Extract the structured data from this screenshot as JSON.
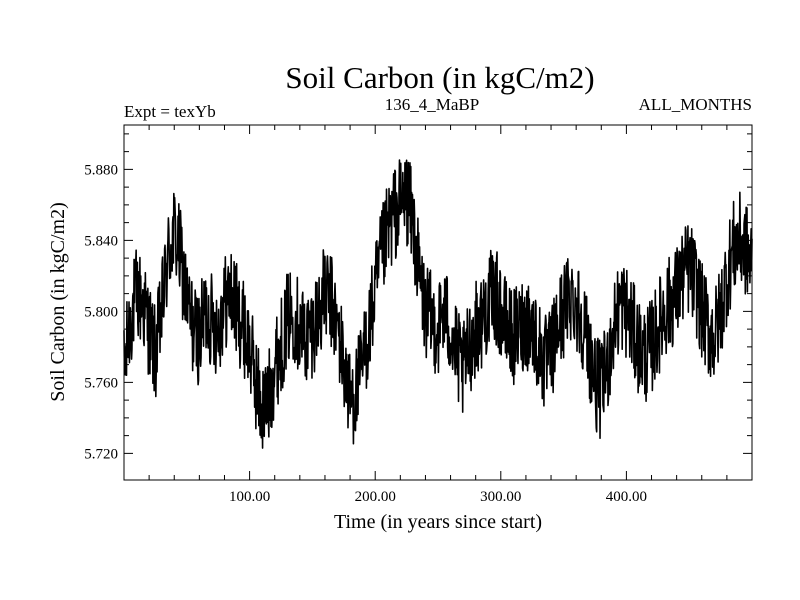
{
  "chart_data": {
    "type": "line",
    "title": "Soil Carbon (in kgC/m2)",
    "subtitle_left": "Expt = texYb",
    "subtitle_center": "136_4_MaBP",
    "subtitle_right": "ALL_MONTHS",
    "xlabel": "Time (in years since start)",
    "ylabel": "Soil Carbon (in kgC/m2)",
    "xlim": [
      0,
      500
    ],
    "ylim": [
      5.705,
      5.905
    ],
    "x_ticks": [
      100,
      200,
      300,
      400
    ],
    "x_tick_labels": [
      "100.00",
      "200.00",
      "300.00",
      "400.00"
    ],
    "y_ticks": [
      5.72,
      5.76,
      5.8,
      5.84,
      5.88
    ],
    "y_tick_labels": [
      "5.720",
      "5.760",
      "5.800",
      "5.840",
      "5.880"
    ],
    "grid": false,
    "line_color": "#000000",
    "series": [
      {
        "x": [
          0,
          5,
          10,
          15,
          20,
          25,
          30,
          35,
          40,
          45,
          50,
          55,
          60,
          65,
          70,
          75,
          80,
          85,
          90,
          95,
          100,
          105,
          110,
          115,
          120,
          125,
          130,
          135,
          140,
          145,
          150,
          155,
          160,
          165,
          170,
          175,
          180,
          185,
          190,
          195,
          200,
          205,
          210,
          215,
          220,
          225,
          230,
          235,
          240,
          245,
          250,
          255,
          260,
          265,
          270,
          275,
          280,
          285,
          290,
          295,
          300,
          305,
          310,
          315,
          320,
          325,
          330,
          335,
          340,
          345,
          350,
          355,
          360,
          365,
          370,
          375,
          380,
          385,
          390,
          395,
          400,
          405,
          410,
          415,
          420,
          425,
          430,
          435,
          440,
          445,
          450,
          455,
          460,
          465,
          470,
          475,
          480,
          485,
          490,
          495,
          500
        ],
        "y": [
          5.765,
          5.795,
          5.81,
          5.805,
          5.79,
          5.775,
          5.8,
          5.83,
          5.845,
          5.83,
          5.805,
          5.79,
          5.785,
          5.8,
          5.795,
          5.79,
          5.805,
          5.81,
          5.8,
          5.79,
          5.78,
          5.76,
          5.745,
          5.75,
          5.77,
          5.78,
          5.795,
          5.8,
          5.79,
          5.785,
          5.79,
          5.8,
          5.81,
          5.805,
          5.79,
          5.77,
          5.75,
          5.755,
          5.77,
          5.79,
          5.81,
          5.83,
          5.845,
          5.855,
          5.86,
          5.865,
          5.85,
          5.82,
          5.8,
          5.795,
          5.79,
          5.8,
          5.79,
          5.775,
          5.765,
          5.78,
          5.79,
          5.795,
          5.805,
          5.81,
          5.8,
          5.79,
          5.785,
          5.79,
          5.795,
          5.79,
          5.78,
          5.77,
          5.775,
          5.79,
          5.8,
          5.81,
          5.805,
          5.795,
          5.78,
          5.76,
          5.755,
          5.77,
          5.79,
          5.805,
          5.8,
          5.79,
          5.78,
          5.775,
          5.78,
          5.79,
          5.8,
          5.805,
          5.81,
          5.82,
          5.825,
          5.815,
          5.8,
          5.79,
          5.785,
          5.8,
          5.82,
          5.835,
          5.84,
          5.835,
          5.825
        ]
      }
    ]
  }
}
